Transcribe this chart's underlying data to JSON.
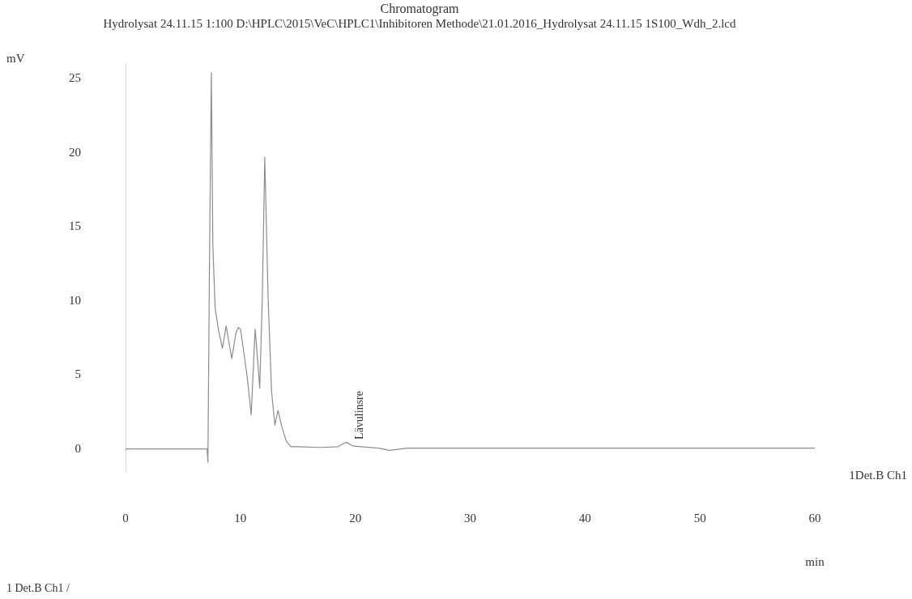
{
  "chart_data": {
    "type": "line",
    "title": "Chromatogram",
    "subtitle": "Hydrolysat 24.11.15 1:100 D:\\HPLC\\2015\\VeC\\HPLC1\\Inhibitoren Methode\\21.01.2016_Hydrolysat 24.11.15 1S100_Wdh_2.lcd",
    "xlabel": "min",
    "ylabel": "mV",
    "x": [
      0,
      7.1,
      7.17,
      7.3,
      7.47,
      7.6,
      7.8,
      8.1,
      8.43,
      8.76,
      9.0,
      9.25,
      9.6,
      9.8,
      10.0,
      10.3,
      10.6,
      10.94,
      11.28,
      11.5,
      11.68,
      11.9,
      12.12,
      12.41,
      12.71,
      13.0,
      13.27,
      13.6,
      14.0,
      14.4,
      15.0,
      17.0,
      18.5,
      19.2,
      19.8,
      20.5,
      22.0,
      23.0,
      24.5,
      30,
      40,
      50,
      60
    ],
    "series": [
      {
        "name": "1Det.B Ch1",
        "color": "#8c8c8c",
        "values": [
          0,
          0,
          -0.9,
          12.0,
          25.4,
          13.8,
          9.5,
          8.0,
          6.8,
          8.3,
          7.2,
          6.1,
          7.8,
          8.2,
          8.1,
          6.5,
          4.8,
          2.3,
          8.1,
          6.0,
          4.1,
          10.0,
          19.7,
          10.2,
          3.9,
          1.6,
          2.6,
          1.5,
          0.5,
          0.15,
          0.15,
          0.1,
          0.15,
          0.45,
          0.2,
          0.15,
          0.05,
          -0.1,
          0.05,
          0.05,
          0.05,
          0.05,
          0.05
        ]
      }
    ],
    "xlim": [
      0,
      60
    ],
    "xticks": [
      0,
      10,
      20,
      30,
      40,
      50,
      60
    ],
    "ylim": [
      -1.5,
      26
    ],
    "yticks": [
      0,
      5,
      10,
      15,
      20,
      25
    ],
    "grid": false,
    "legend": false,
    "marker": "none",
    "line_style": "solid",
    "annotations": [
      {
        "text": "Lävulinsre",
        "x": 19.8,
        "y": 0.2
      },
      "1 Det.B Ch1 /"
    ]
  }
}
